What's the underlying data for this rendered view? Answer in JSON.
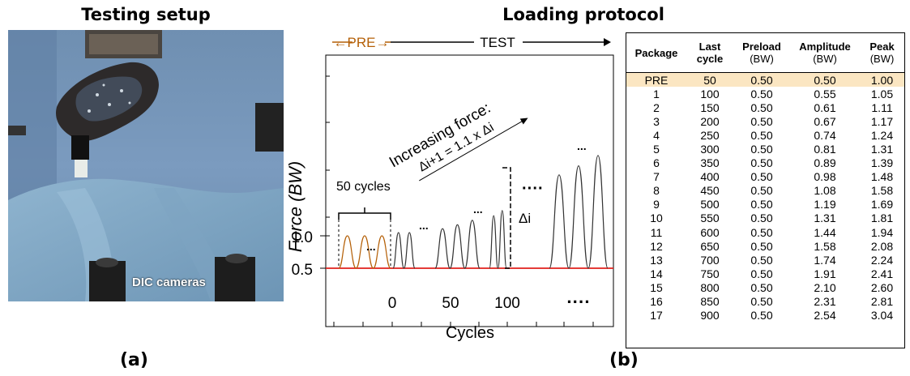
{
  "figure": {
    "panel_a": {
      "title": "Testing setup",
      "label": "(a)",
      "photo_caption": "DIC cameras"
    },
    "panel_b": {
      "title": "Loading protocol",
      "label": "(b)"
    }
  },
  "chart_data": {
    "type": "line",
    "xlabel": "Cycles",
    "ylabel": "Force (BW)",
    "x_ticks": [
      "0",
      "50",
      "100"
    ],
    "y_ticks": [
      "0.5",
      "1.0"
    ],
    "phase_labels": {
      "pre": "←PRE→",
      "test": "TEST"
    },
    "annotations": {
      "cycles_bracket": "50 cycles",
      "increasing_force": "Increasing force:",
      "formula": "Δi+1 = 1.1 x Δi",
      "delta": "Δi",
      "ellipsis_small": "...",
      "ellipsis_dots": "····"
    },
    "baseline": 0.5,
    "baseline_color": "#e0201b",
    "pre_color": "#b45f06",
    "series": [
      {
        "values": [
          0.5,
          1.0,
          0.5,
          1.0,
          0.5,
          1.0,
          0.5
        ]
      },
      {
        "values": [
          0.5,
          1.05,
          0.5,
          1.05,
          0.5
        ]
      },
      {
        "values": [
          0.5,
          1.11,
          0.5,
          1.17,
          0.5,
          1.24,
          0.5
        ]
      },
      {
        "values": [
          0.5,
          1.31,
          0.5,
          1.39,
          0.5
        ]
      },
      {
        "values": [
          0.5,
          1.94,
          0.5,
          2.08,
          0.5,
          2.24,
          0.5
        ]
      }
    ]
  },
  "table": {
    "headers": [
      {
        "main": "Package",
        "unit": ""
      },
      {
        "main": "Last cycle",
        "unit": ""
      },
      {
        "main": "Preload",
        "unit": "(BW)"
      },
      {
        "main": "Amplitude",
        "unit": "(BW)"
      },
      {
        "main": "Peak",
        "unit": "(BW)"
      }
    ],
    "highlight_color": "#fbe6c2",
    "rows": [
      [
        "PRE",
        "50",
        "0.50",
        "0.50",
        "1.00"
      ],
      [
        "1",
        "100",
        "0.50",
        "0.55",
        "1.05"
      ],
      [
        "2",
        "150",
        "0.50",
        "0.61",
        "1.11"
      ],
      [
        "3",
        "200",
        "0.50",
        "0.67",
        "1.17"
      ],
      [
        "4",
        "250",
        "0.50",
        "0.74",
        "1.24"
      ],
      [
        "5",
        "300",
        "0.50",
        "0.81",
        "1.31"
      ],
      [
        "6",
        "350",
        "0.50",
        "0.89",
        "1.39"
      ],
      [
        "7",
        "400",
        "0.50",
        "0.98",
        "1.48"
      ],
      [
        "8",
        "450",
        "0.50",
        "1.08",
        "1.58"
      ],
      [
        "9",
        "500",
        "0.50",
        "1.19",
        "1.69"
      ],
      [
        "10",
        "550",
        "0.50",
        "1.31",
        "1.81"
      ],
      [
        "11",
        "600",
        "0.50",
        "1.44",
        "1.94"
      ],
      [
        "12",
        "650",
        "0.50",
        "1.58",
        "2.08"
      ],
      [
        "13",
        "700",
        "0.50",
        "1.74",
        "2.24"
      ],
      [
        "14",
        "750",
        "0.50",
        "1.91",
        "2.41"
      ],
      [
        "15",
        "800",
        "0.50",
        "2.10",
        "2.60"
      ],
      [
        "16",
        "850",
        "0.50",
        "2.31",
        "2.81"
      ],
      [
        "17",
        "900",
        "0.50",
        "2.54",
        "3.04"
      ]
    ]
  }
}
